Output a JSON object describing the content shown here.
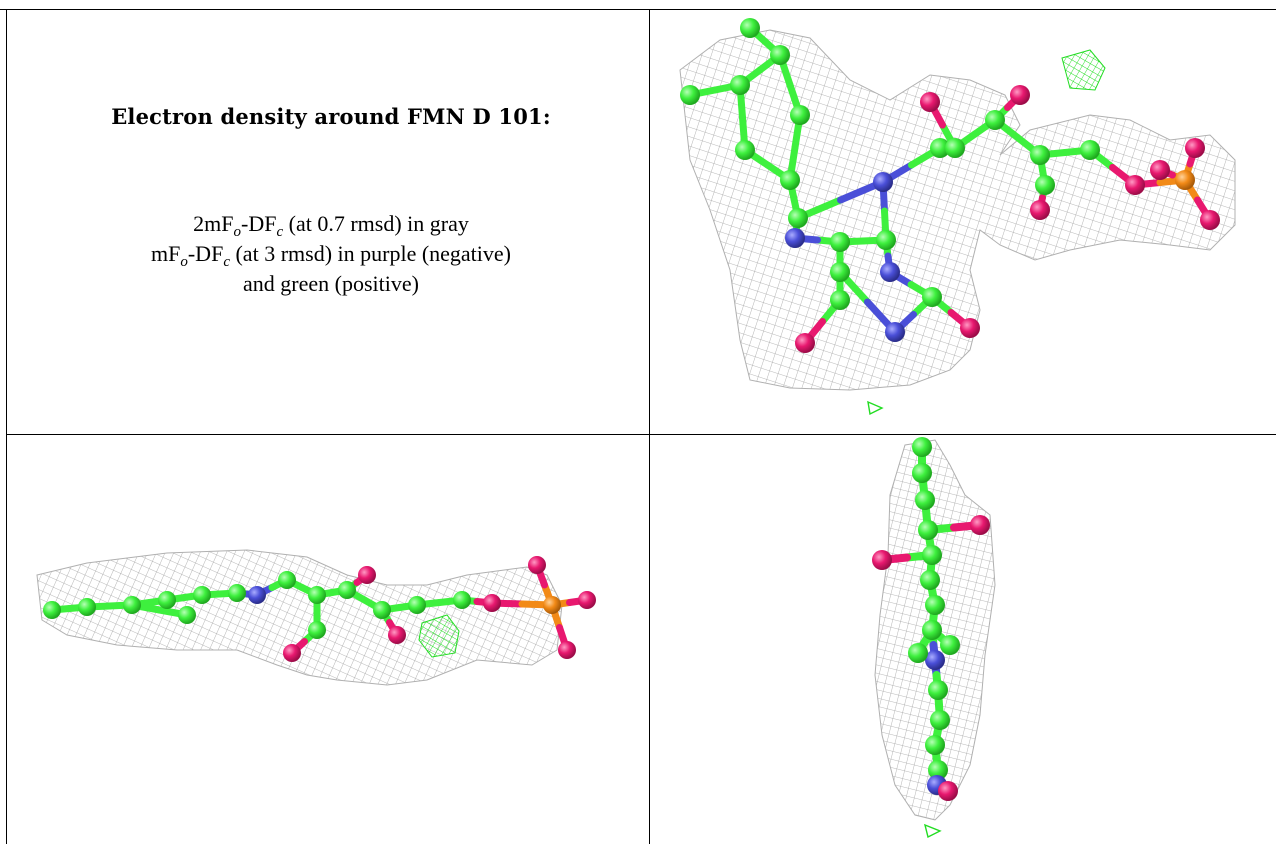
{
  "caption": {
    "title": "Electron density around FMN D 101:",
    "line1_a": "2mF",
    "line1_sub1": "o",
    "line1_b": "-DF",
    "line1_sub2": "c",
    "line1_c": " (at 0.7 rmsd) in gray",
    "line2_a": "mF",
    "line2_sub1": "o",
    "line2_b": "-DF",
    "line2_sub2": "c",
    "line2_c": " (at 3 rmsd) in purple (negative)",
    "line3": "and green (positive)"
  },
  "colors": {
    "carbon": "#3ef03e",
    "nitrogen": "#4a4fd8",
    "oxygen": "#e8186f",
    "phosphorus": "#f28a17",
    "mesh_gray": "#9a9a9a",
    "mesh_green": "#22dd22"
  },
  "panels": [
    {
      "name": "top-right",
      "view": "face-on"
    },
    {
      "name": "bottom-left",
      "view": "side-on"
    },
    {
      "name": "bottom-right",
      "view": "edge-on"
    }
  ]
}
